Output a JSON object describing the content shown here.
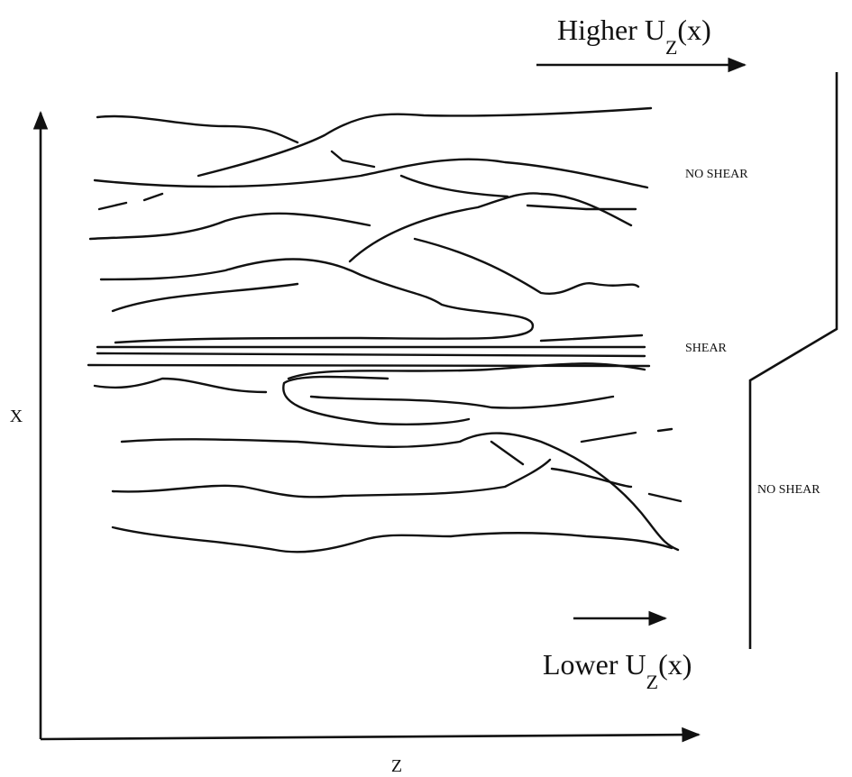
{
  "top_label": {
    "main": "Higher U",
    "sub": "Z",
    "arg": "(x)"
  },
  "bottom_label": {
    "main": "Lower U",
    "sub": "Z",
    "arg": "(x)"
  },
  "regions": [
    "NO SHEAR",
    "SHEAR",
    "NO SHEAR"
  ],
  "axes": {
    "vertical": "X",
    "horizontal": "Z"
  }
}
